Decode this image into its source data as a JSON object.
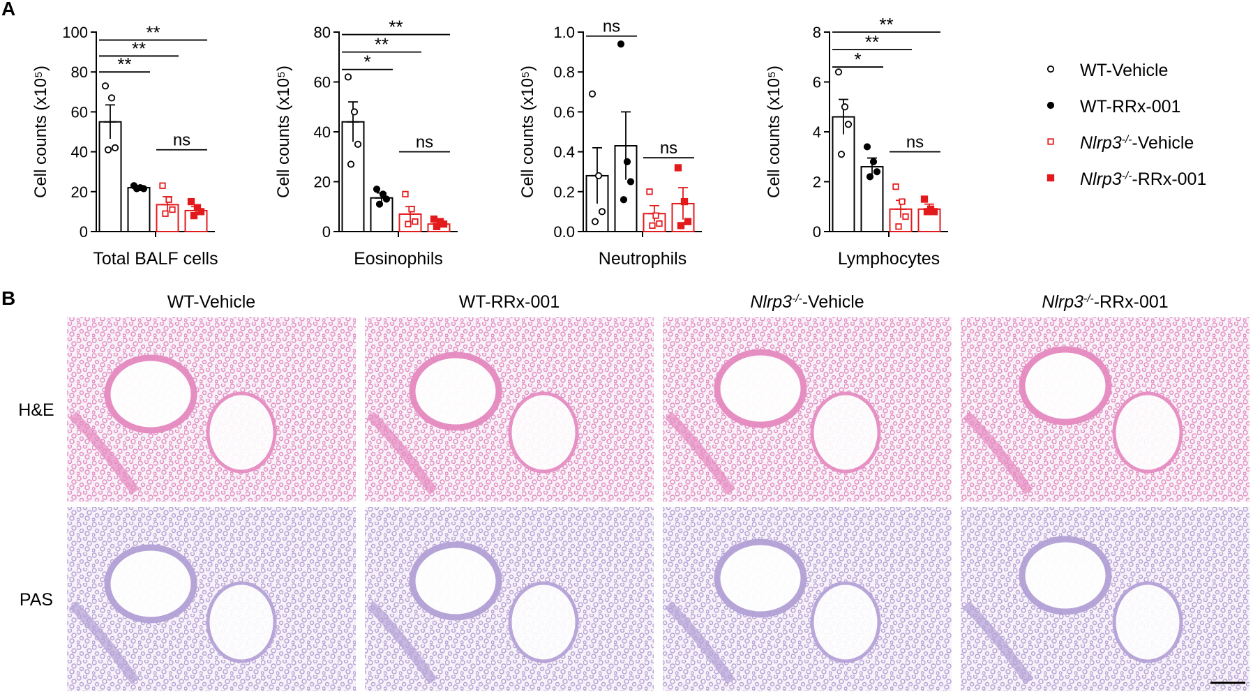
{
  "panel_labels": [
    "A",
    "B"
  ],
  "chart_data": [
    {
      "type": "bar",
      "xlabel": "Total BALF cells",
      "ylabel": "Cell counts (x10⁵)",
      "ylim": [
        0,
        100
      ],
      "yticks": [
        "0",
        "20",
        "40",
        "60",
        "80",
        "100"
      ],
      "categories": [
        "WT-Vehicle",
        "WT-RRx-001",
        "Nlrp3-/--Vehicle",
        "Nlrp3-/--RRx-001"
      ],
      "values": [
        55,
        22,
        13.5,
        10.5
      ],
      "errors": [
        8.5,
        1,
        4,
        2
      ],
      "points": [
        [
          73,
          67,
          42,
          41
        ],
        [
          23,
          22,
          21.5,
          21.5
        ],
        [
          23,
          16,
          11,
          9
        ],
        [
          15,
          12,
          10,
          8
        ]
      ],
      "significance": [
        {
          "from": 0,
          "to": 1,
          "label": "**",
          "y": 80
        },
        {
          "from": 0,
          "to": 2,
          "label": "**",
          "y": 88
        },
        {
          "from": 0,
          "to": 3,
          "label": "**",
          "y": 96
        },
        {
          "from": 2,
          "to": 3,
          "label": "ns",
          "y": 41
        }
      ]
    },
    {
      "type": "bar",
      "xlabel": "Eosinophils",
      "ylabel": "Cell counts (x10⁵)",
      "ylim": [
        0,
        80
      ],
      "yticks": [
        "0",
        "20",
        "40",
        "60",
        "80"
      ],
      "categories": [
        "WT-Vehicle",
        "WT-RRx-001",
        "Nlrp3-/--Vehicle",
        "Nlrp3-/--RRx-001"
      ],
      "values": [
        44,
        13.5,
        7,
        3
      ],
      "errors": [
        8,
        2,
        3,
        1.5
      ],
      "points": [
        [
          62,
          48,
          35,
          27
        ],
        [
          17,
          15,
          13,
          11
        ],
        [
          15,
          9,
          4,
          3
        ],
        [
          5,
          4,
          3,
          2
        ]
      ],
      "significance": [
        {
          "from": 0,
          "to": 1,
          "label": "*",
          "y": 65
        },
        {
          "from": 0,
          "to": 2,
          "label": "**",
          "y": 72
        },
        {
          "from": 0,
          "to": 3,
          "label": "**",
          "y": 79
        },
        {
          "from": 2,
          "to": 3,
          "label": "ns",
          "y": 32
        }
      ]
    },
    {
      "type": "bar",
      "xlabel": "Neutrophils",
      "ylabel": "Cell counts (x10⁵)",
      "ylim": [
        0,
        1.0
      ],
      "yticks": [
        "0.0",
        "0.2",
        "0.4",
        "0.6",
        "0.8",
        "1.0"
      ],
      "categories": [
        "WT-Vehicle",
        "WT-RRx-001",
        "Nlrp3-/--Vehicle",
        "Nlrp3-/--RRx-001"
      ],
      "values": [
        0.28,
        0.43,
        0.09,
        0.14
      ],
      "errors": [
        0.14,
        0.17,
        0.04,
        0.08
      ],
      "points": [
        [
          0.69,
          0.28,
          0.1,
          0.05
        ],
        [
          0.94,
          0.35,
          0.25,
          0.16
        ],
        [
          0.2,
          0.08,
          0.04,
          0.03
        ],
        [
          0.32,
          0.15,
          0.05,
          0.03
        ]
      ],
      "significance": [
        {
          "from": 0,
          "to": 1,
          "label": "ns",
          "y": 0.98
        },
        {
          "from": 2,
          "to": 3,
          "label": "ns",
          "y": 0.37
        }
      ]
    },
    {
      "type": "bar",
      "xlabel": "Lymphocytes",
      "ylabel": "Cell counts (x10⁵)",
      "ylim": [
        0,
        8
      ],
      "yticks": [
        "0",
        "2",
        "4",
        "6",
        "8"
      ],
      "categories": [
        "WT-Vehicle",
        "WT-RRx-001",
        "Nlrp3-/--Vehicle",
        "Nlrp3-/--RRx-001"
      ],
      "values": [
        4.6,
        2.6,
        0.9,
        0.9
      ],
      "errors": [
        0.7,
        0.35,
        0.35,
        0.2
      ],
      "points": [
        [
          6.4,
          5,
          4.3,
          3.1
        ],
        [
          3.4,
          2.8,
          2.4,
          2.2
        ],
        [
          1.8,
          1.2,
          0.6,
          0.2
        ],
        [
          1.3,
          0.9,
          0.8,
          0.8
        ]
      ],
      "significance": [
        {
          "from": 0,
          "to": 1,
          "label": "*",
          "y": 6.6
        },
        {
          "from": 0,
          "to": 2,
          "label": "**",
          "y": 7.3
        },
        {
          "from": 0,
          "to": 3,
          "label": "**",
          "y": 8.0
        },
        {
          "from": 2,
          "to": 3,
          "label": "ns",
          "y": 3.2
        }
      ]
    }
  ],
  "legend": [
    {
      "prefix": "",
      "italic": "",
      "sup": "",
      "suffix": "WT-Vehicle",
      "marker": "open-circle",
      "color": "#000000"
    },
    {
      "prefix": "",
      "italic": "",
      "sup": "",
      "suffix": "WT-RRx-001",
      "marker": "filled-circle",
      "color": "#000000"
    },
    {
      "prefix": "",
      "italic": "Nlrp3",
      "sup": "-/-",
      "suffix": "-Vehicle",
      "marker": "open-square",
      "color": "#e31a1c"
    },
    {
      "prefix": "",
      "italic": "Nlrp3",
      "sup": "-/-",
      "suffix": "-RRx-001",
      "marker": "filled-square",
      "color": "#e31a1c"
    }
  ],
  "histology": {
    "columns": [
      {
        "italic": "",
        "sup": "",
        "suffix": "WT-Vehicle"
      },
      {
        "italic": "",
        "sup": "",
        "suffix": "WT-RRx-001"
      },
      {
        "italic": "Nlrp3",
        "sup": "-/-",
        "suffix": "-Vehicle"
      },
      {
        "italic": "Nlrp3",
        "sup": "-/-",
        "suffix": "-RRx-001"
      }
    ],
    "rows": [
      "H&E",
      "PAS"
    ],
    "stain_colors": {
      "H&E": "#e58ac0",
      "PAS": "#b3a1d6"
    }
  },
  "colors": {
    "wt": "#000000",
    "ko": "#e31a1c"
  }
}
